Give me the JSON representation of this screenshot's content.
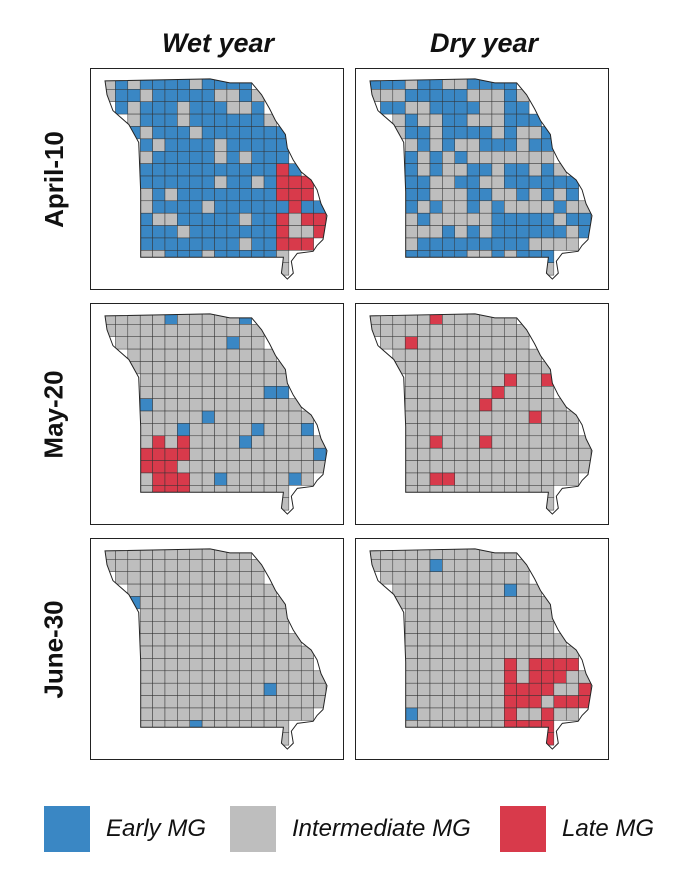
{
  "columns": [
    "Wet year",
    "Dry year"
  ],
  "rows": [
    "April-10",
    "May-20",
    "June-30"
  ],
  "legend": [
    {
      "label": "Early MG",
      "color": "#3a87c4"
    },
    {
      "label": "Intermediate MG",
      "color": "#bebebe"
    },
    {
      "label": "Late MG",
      "color": "#d83a4b"
    }
  ],
  "maps": [
    {
      "row": 0,
      "col": 0,
      "blue": "0.78",
      "red": "0.05",
      "red_cluster": "east"
    },
    {
      "row": 0,
      "col": 1,
      "blue": "0.55",
      "red": "0.00",
      "red_cluster": "none"
    },
    {
      "row": 1,
      "col": 0,
      "blue": "0.05",
      "red": "0.08",
      "red_cluster": "southwest"
    },
    {
      "row": 1,
      "col": 1,
      "blue": "0.04",
      "red": "0.05",
      "red_cluster": "scattered"
    },
    {
      "row": 2,
      "col": 0,
      "blue": "0.02",
      "red": "0.00",
      "red_cluster": "none"
    },
    {
      "row": 2,
      "col": 1,
      "blue": "0.03",
      "red": "0.22",
      "red_cluster": "southeast"
    }
  ]
}
